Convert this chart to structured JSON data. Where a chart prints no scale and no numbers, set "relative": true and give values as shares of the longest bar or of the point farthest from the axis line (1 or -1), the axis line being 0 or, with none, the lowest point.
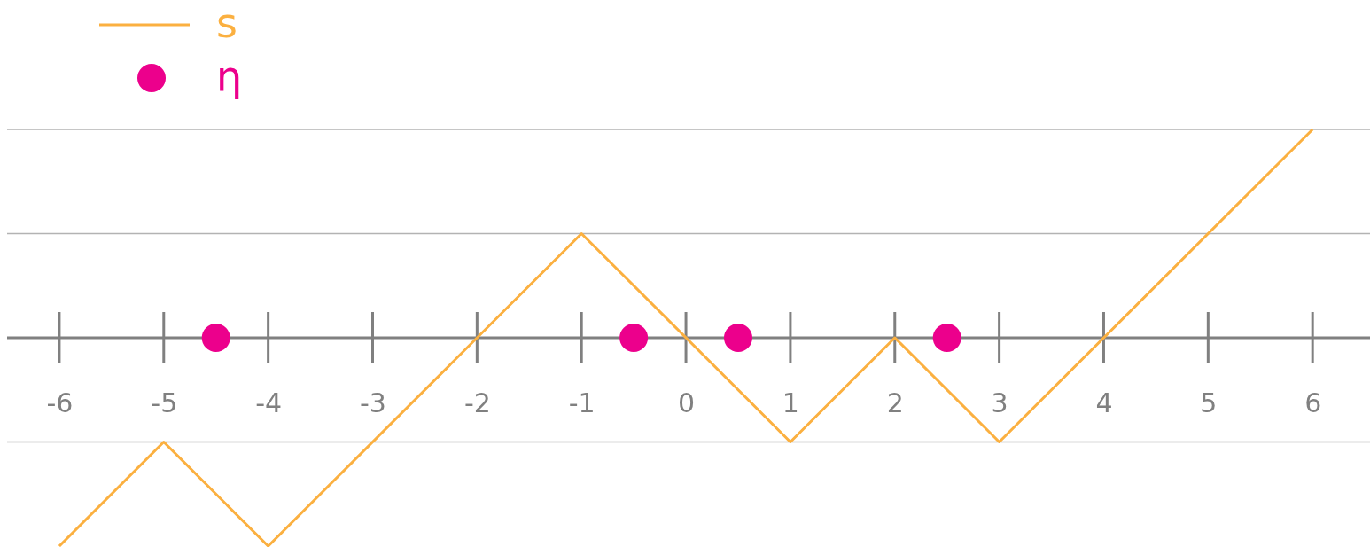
{
  "chart_data": {
    "type": "line",
    "relative": true,
    "xlim": [
      -6.5,
      6.55
    ],
    "xticks": [
      -6,
      -5,
      -4,
      -3,
      -2,
      -1,
      0,
      1,
      2,
      3,
      4,
      5,
      6
    ],
    "legend": "top left",
    "tick_labels": "x",
    "ref_lines": [
      {
        "axis": "y",
        "value": 1,
        "color": "#b3b3b3"
      },
      {
        "axis": "y",
        "value": 0.5,
        "color": "#b3b3b3"
      },
      {
        "axis": "y",
        "value": -0.5,
        "color": "#b3b3b3"
      }
    ],
    "series": [
      {
        "name": "s",
        "color": "#fbb040",
        "marker": "none",
        "x": [
          -6,
          -5,
          -4,
          -1,
          1,
          2,
          3,
          6
        ],
        "values": [
          -1,
          -0.5,
          -1,
          0.5,
          -0.5,
          0,
          -0.5,
          1
        ]
      },
      {
        "name": "η",
        "type": "scatter",
        "color": "#ec008c",
        "marker": "circle",
        "x": [
          -4.5,
          -0.5,
          0.5,
          2.5
        ],
        "values": [
          0,
          0,
          0,
          0
        ]
      }
    ]
  }
}
